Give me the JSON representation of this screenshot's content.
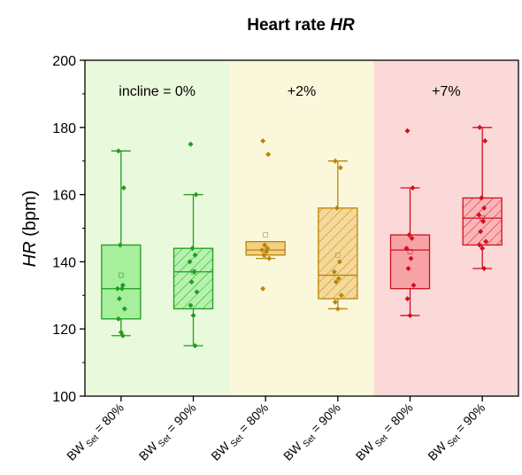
{
  "chart_data": {
    "type": "box",
    "title": "Heart rate",
    "title_var": "HR",
    "ylabel_var": "HR",
    "ylabel_unit": "(bpm)",
    "ylim": [
      100,
      200
    ],
    "yticks": [
      100,
      120,
      140,
      160,
      180,
      200
    ],
    "grid": false,
    "regions": [
      {
        "label": "incline = 0%",
        "color": "#e9f9dc"
      },
      {
        "label": "+2%",
        "color": "#faf7da"
      },
      {
        "label": "+7%",
        "color": "#fcd9d9"
      }
    ],
    "categories": [
      {
        "label_main": "BW",
        "label_sub": "Set",
        "label_tail": " = 80%"
      },
      {
        "label_main": "BW",
        "label_sub": "Set",
        "label_tail": " = 90%"
      },
      {
        "label_main": "BW",
        "label_sub": "Set",
        "label_tail": " = 80%"
      },
      {
        "label_main": "BW",
        "label_sub": "Set",
        "label_tail": " = 90%"
      },
      {
        "label_main": "BW",
        "label_sub": "Set",
        "label_tail": " = 80%"
      },
      {
        "label_main": "BW",
        "label_sub": "Set",
        "label_tail": " = 90%"
      }
    ],
    "boxes": [
      {
        "stroke": "#1e9e1e",
        "fill": "#a6ef9d",
        "hatched": false,
        "whisker_low": 118,
        "q1": 123,
        "median": 132,
        "q3": 145,
        "whisker_high": 173,
        "mean": 136,
        "points": [
          173,
          162,
          145,
          133,
          132,
          132,
          129,
          126,
          123,
          119,
          118
        ]
      },
      {
        "stroke": "#1e9e1e",
        "fill": "#a6ef9d",
        "hatched": true,
        "whisker_low": 115,
        "q1": 126,
        "median": 137,
        "q3": 144,
        "whisker_high": 160,
        "mean": 137,
        "points": [
          175,
          160,
          144,
          142,
          140,
          137,
          134,
          131,
          127,
          124,
          115
        ]
      },
      {
        "stroke": "#b8860b",
        "fill": "#f2cf85",
        "hatched": false,
        "whisker_low": 141,
        "q1": 142,
        "median": 143.5,
        "q3": 146,
        "whisker_high": 146,
        "mean": 148,
        "points": [
          176,
          172,
          145,
          144,
          143.5,
          143,
          142,
          141,
          132
        ]
      },
      {
        "stroke": "#b8860b",
        "fill": "#f2cf85",
        "hatched": true,
        "whisker_low": 126,
        "q1": 129,
        "median": 136,
        "q3": 156,
        "whisker_high": 170,
        "mean": 142,
        "points": [
          170,
          168,
          156,
          140,
          137,
          135,
          134,
          130,
          128,
          126
        ]
      },
      {
        "stroke": "#d0101e",
        "fill": "#f7a3a6",
        "hatched": false,
        "whisker_low": 124,
        "q1": 132,
        "median": 143.5,
        "q3": 148,
        "whisker_high": 162,
        "mean": 143,
        "points": [
          179,
          162,
          148,
          147,
          144,
          141,
          138,
          133,
          129,
          124
        ]
      },
      {
        "stroke": "#d0101e",
        "fill": "#f7a3a6",
        "hatched": true,
        "whisker_low": 138,
        "q1": 145,
        "median": 153,
        "q3": 159,
        "whisker_high": 180,
        "mean": 153,
        "points": [
          180,
          176,
          159,
          156,
          154,
          152,
          149,
          146,
          145,
          144,
          138
        ]
      }
    ]
  }
}
